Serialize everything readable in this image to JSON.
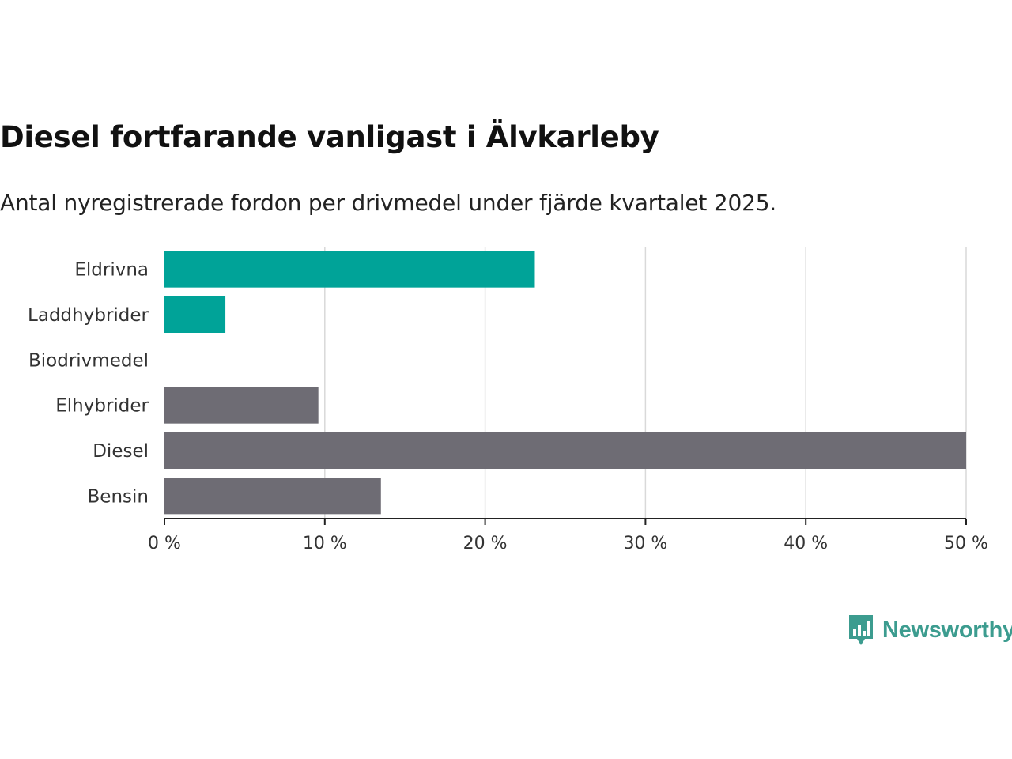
{
  "title": "Diesel fortfarande vanligast i Älvkarleby",
  "subtitle": "Antal nyregistrerade fordon per drivmedel under fjärde kvartalet 2025.",
  "chart_data": {
    "type": "bar",
    "orientation": "horizontal",
    "categories": [
      "Eldrivna",
      "Laddhybrider",
      "Biodrivmedel",
      "Elhybrider",
      "Diesel",
      "Bensin"
    ],
    "values": [
      23.1,
      3.8,
      0,
      9.6,
      50.0,
      13.5
    ],
    "bar_colors": [
      "#00a398",
      "#00a398",
      "#00a398",
      "#6e6c74",
      "#6e6c74",
      "#6e6c74"
    ],
    "xlim": [
      0,
      50
    ],
    "xticks": [
      0,
      10,
      20,
      30,
      40,
      50
    ],
    "xtick_labels": [
      "0 %",
      "10 %",
      "20 %",
      "30 %",
      "40 %",
      "50 %"
    ],
    "grid": true,
    "xlabel": "",
    "ylabel": ""
  },
  "brand": {
    "name": "Newsworthy",
    "color": "#3c9c8f"
  }
}
